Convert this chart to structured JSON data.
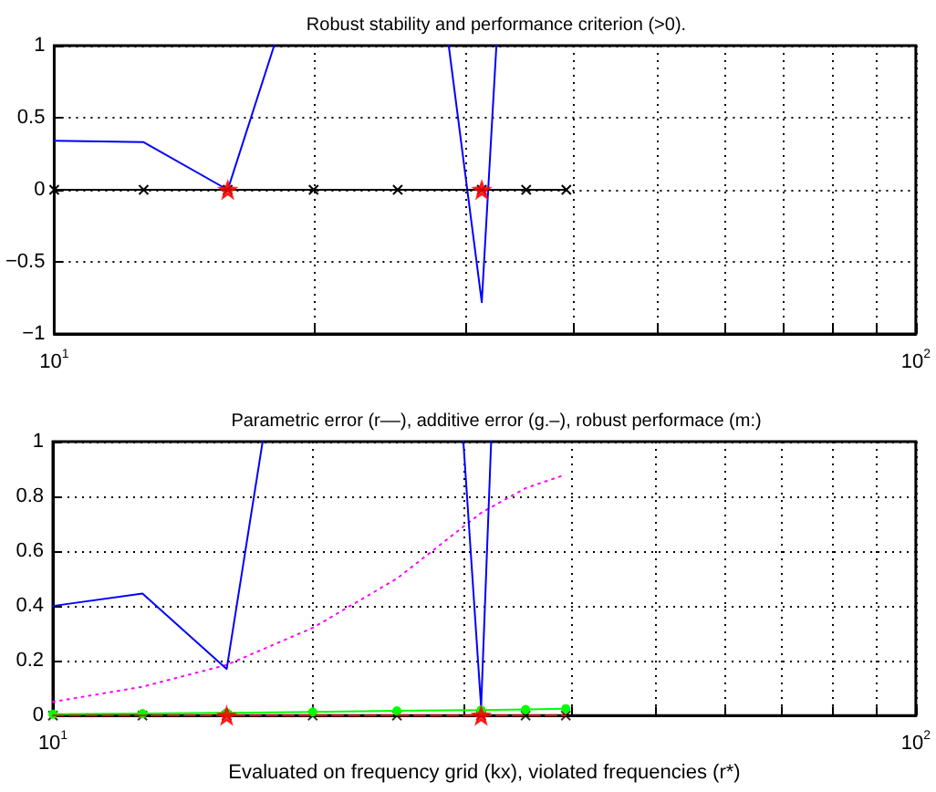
{
  "chart_data": [
    {
      "type": "line",
      "title": "Robust stability and performance criterion (>0).",
      "xlim": [
        10,
        100
      ],
      "ylim": [
        -1,
        1
      ],
      "log": "x",
      "grid": true,
      "xticks": [
        {
          "value": 10,
          "label": "10$^{1}$"
        },
        {
          "value": 20,
          "label": null
        },
        {
          "value": 30,
          "label": null
        },
        {
          "value": 40,
          "label": null
        },
        {
          "value": 50,
          "label": null
        },
        {
          "value": 60,
          "label": null
        },
        {
          "value": 70,
          "label": null
        },
        {
          "value": 80,
          "label": null
        },
        {
          "value": 90,
          "label": null
        },
        {
          "value": 100,
          "label": "10$^{2}$"
        }
      ],
      "yticks": [
        -1,
        -0.5,
        0,
        0.5,
        1
      ],
      "series": [
        {
          "color": "#0000ff",
          "x": [
            10,
            12.7,
            15.9,
            18,
            20,
            28.7,
            31.35,
            32.6
          ],
          "values": [
            0.34,
            0.33,
            0,
            1,
            null,
            1,
            -0.78,
            1
          ],
          "marker": "none",
          "line_style": "solid"
        },
        {
          "color": "#000000",
          "x": [
            10,
            12.7,
            15.9,
            20,
            25.04,
            31.35,
            35.3,
            39.3
          ],
          "values": [
            0,
            0,
            0,
            0,
            0,
            0,
            0,
            0
          ],
          "marker": "cross",
          "line_style": "solid"
        },
        {
          "type": "scatter",
          "color": "#ff0000",
          "x": [
            15.9,
            31.35
          ],
          "values": [
            0,
            0
          ],
          "marker": "star"
        }
      ]
    },
    {
      "type": "line",
      "title": "Parametric error (r––), additive error (g.–), robust performace (m:)",
      "xlabel": "Evaluated on frequency grid (kx), violated frequencies (r*)",
      "xlim": [
        10,
        100
      ],
      "ylim": [
        0,
        1
      ],
      "log": "x",
      "grid": true,
      "xticks": [
        {
          "value": 10,
          "label": "10$^{1}$"
        },
        {
          "value": 20,
          "label": null
        },
        {
          "value": 30,
          "label": null
        },
        {
          "value": 40,
          "label": null
        },
        {
          "value": 50,
          "label": null
        },
        {
          "value": 60,
          "label": null
        },
        {
          "value": 70,
          "label": null
        },
        {
          "value": 80,
          "label": null
        },
        {
          "value": 90,
          "label": null
        },
        {
          "value": 100,
          "label": "10$^{2}$"
        }
      ],
      "yticks": [
        0,
        0.2,
        0.4,
        0.6,
        0.8,
        1
      ],
      "series": [
        {
          "color": "#ff00ff",
          "x": [
            10,
            12.7,
            15.9,
            20,
            25.04,
            31.35,
            35.3,
            39.3
          ],
          "values": [
            0.05,
            0.105,
            0.185,
            0.32,
            0.5,
            0.74,
            0.83,
            0.88
          ],
          "marker": "none",
          "line_style": "dotted"
        },
        {
          "color": "#0000ff",
          "x": [
            10,
            12.7,
            15.9,
            17.5,
            20,
            29.9,
            31.35,
            32.2
          ],
          "values": [
            0.4,
            0.445,
            0.17,
            1,
            null,
            1,
            0.03,
            1
          ],
          "marker": "none",
          "line_style": "solid"
        },
        {
          "color": "#00ff00",
          "x": [
            10,
            12.7,
            15.9,
            20,
            25.04,
            31.35,
            35.3,
            39.3
          ],
          "values": [
            0.005,
            0.007,
            0.01,
            0.013,
            0.017,
            0.02,
            0.022,
            0.025
          ],
          "marker": "circle",
          "line_style": "solid"
        },
        {
          "color": "#ff0000",
          "x": [
            10,
            12.7,
            15.9,
            20,
            25.04,
            31.35,
            35.3,
            39.3
          ],
          "values": [
            0,
            0,
            0,
            0,
            0,
            0,
            0,
            0
          ],
          "marker": "none",
          "line_style": "dashed"
        },
        {
          "type": "scatter",
          "color": "#000000",
          "x": [
            10,
            12.7,
            15.9,
            20,
            25.04,
            31.35,
            35.3,
            39.3
          ],
          "values": [
            0,
            0,
            0,
            0,
            0,
            0,
            0,
            0
          ],
          "marker": "cross"
        },
        {
          "type": "scatter",
          "color": "#ff0000",
          "x": [
            15.9,
            31.35
          ],
          "values": [
            0,
            0
          ],
          "marker": "star"
        }
      ]
    }
  ]
}
